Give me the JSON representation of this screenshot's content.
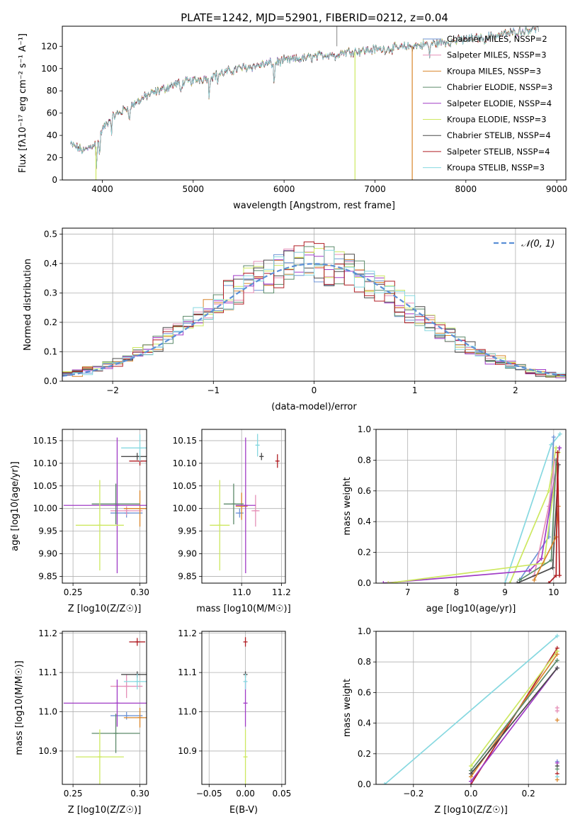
{
  "page_title": "PLATE=1242, MJD=52901, FIBERID=0212, z=0.04",
  "colors": {
    "chabrier_miles": "#6f95d6",
    "salpeter_miles": "#e58fb7",
    "kroupa_miles": "#d9862b",
    "chabrier_elodie": "#5c8a6a",
    "salpeter_elodie": "#a03bc6",
    "kroupa_elodie": "#cde860",
    "chabrier_stelib": "#4a4a4a",
    "salpeter_stelib": "#b01e24",
    "kroupa_stelib": "#86d8e0",
    "data_gray": "#9a9a9a",
    "normal": "#5b8fd6",
    "grid": "#b0b0b0"
  },
  "chart_data": [
    {
      "type": "line",
      "title": "PLATE=1242, MJD=52901, FIBERID=0212, z=0.04",
      "xlabel": "wavelength [Angstrom, rest frame]",
      "ylabel": "Flux [fλ10⁻¹⁷ erg cm⁻² s⁻¹ A⁻¹]",
      "xlim": [
        3560,
        9100
      ],
      "ylim": [
        0,
        138
      ],
      "xticks": [
        4000,
        5000,
        6000,
        7000,
        8000,
        9000
      ],
      "yticks": [
        0,
        20,
        40,
        60,
        80,
        100,
        120
      ],
      "grid": false,
      "legend_position": "top-right",
      "series": [
        {
          "name": "Chabrier MILES, NSSP=2",
          "color_key": "chabrier_miles"
        },
        {
          "name": "Salpeter MILES, NSSP=3",
          "color_key": "salpeter_miles"
        },
        {
          "name": "Kroupa MILES, NSSP=3",
          "color_key": "kroupa_miles"
        },
        {
          "name": "Chabrier ELODIE, NSSP=3",
          "color_key": "chabrier_elodie"
        },
        {
          "name": "Salpeter ELODIE, NSSP=4",
          "color_key": "salpeter_elodie"
        },
        {
          "name": "Kroupa ELODIE, NSSP=3",
          "color_key": "kroupa_elodie"
        },
        {
          "name": "Chabrier STELIB, NSSP=4",
          "color_key": "chabrier_stelib"
        },
        {
          "name": "Salpeter STELIB, NSSP=4",
          "color_key": "salpeter_stelib"
        },
        {
          "name": "Kroupa STELIB, NSSP=3",
          "color_key": "kroupa_stelib"
        }
      ],
      "continuum": {
        "x": [
          3650,
          3800,
          3950,
          4000,
          4100,
          4300,
          4500,
          4800,
          5000,
          5200,
          5500,
          5800,
          6000,
          6300,
          6500,
          6700,
          7000,
          7200,
          7500,
          7800,
          8000,
          8200,
          8500,
          8800,
          9000
        ],
        "y": [
          32,
          26,
          35,
          45,
          56,
          66,
          76,
          86,
          89,
          93,
          100,
          104,
          107,
          110,
          113,
          115,
          117,
          118,
          121,
          124,
          126,
          128,
          132,
          137,
          140
        ]
      },
      "spikes": [
        {
          "x": 3930,
          "y_from": 30,
          "y_to": 0,
          "color_key": "kroupa_elodie"
        },
        {
          "x": 6780,
          "y_from": 115,
          "y_to": 0,
          "color_key": "kroupa_elodie"
        },
        {
          "x": 7410,
          "y_from": 120,
          "y_to": 0,
          "color_key": "kroupa_miles"
        },
        {
          "x": 6580,
          "y_from": 120,
          "y_to": 140,
          "color_key": "data_gray"
        }
      ]
    },
    {
      "type": "line",
      "xlabel": "(data-model)/error",
      "ylabel": "Normed distribution",
      "xlim": [
        -2.5,
        2.5
      ],
      "ylim": [
        0,
        0.52
      ],
      "xticks": [
        -2,
        -1,
        0,
        1,
        2
      ],
      "yticks": [
        0.0,
        0.1,
        0.2,
        0.3,
        0.4,
        0.5
      ],
      "grid": true,
      "legend_position": "top-right",
      "legend": [
        "𝒩(0, 1)"
      ],
      "histogram_bins": {
        "start": -2.5,
        "width": 0.1,
        "count": 50
      },
      "histogram_series_count": 9
    },
    {
      "type": "scatter",
      "xlabel": "Z [log10(Z/Z☉)]",
      "ylabel": "age  [log10(age/yr)]",
      "xlim": [
        0.242,
        0.305
      ],
      "ylim": [
        9.835,
        10.175
      ],
      "xticks": [
        0.25,
        0.3
      ],
      "yticks": [
        9.85,
        9.9,
        9.95,
        10.0,
        10.05,
        10.1,
        10.15
      ],
      "grid": true,
      "points": [
        {
          "x": 0.29,
          "xerr": 0.012,
          "y": 9.99,
          "yerr": 0.01,
          "color_key": "chabrier_miles"
        },
        {
          "x": 0.29,
          "xerr": 0.012,
          "y": 9.995,
          "yerr": 0.01,
          "color_key": "salpeter_miles"
        },
        {
          "x": 0.3,
          "xerr": 0.012,
          "y": 10.0,
          "yerr": 0.04,
          "color_key": "kroupa_miles"
        },
        {
          "x": 0.282,
          "xerr": 0.018,
          "y": 10.01,
          "yerr": 0.045,
          "color_key": "chabrier_elodie"
        },
        {
          "x": 0.283,
          "xerr": 0.04,
          "y": 10.007,
          "yerr": 0.15,
          "color_key": "salpeter_elodie"
        },
        {
          "x": 0.27,
          "xerr": 0.018,
          "y": 9.963,
          "yerr": 0.1,
          "color_key": "kroupa_elodie"
        },
        {
          "x": 0.298,
          "xerr": 0.012,
          "y": 10.115,
          "yerr": 0.008,
          "color_key": "chabrier_stelib"
        },
        {
          "x": 0.3,
          "xerr": 0.008,
          "y": 10.105,
          "yerr": 0.01,
          "color_key": "salpeter_stelib"
        },
        {
          "x": 0.3,
          "xerr": 0.014,
          "y": 10.134,
          "yerr": 0.03,
          "color_key": "kroupa_stelib"
        }
      ]
    },
    {
      "type": "scatter",
      "xlabel": "mass [log10(M/M☉)]",
      "ylabel": "",
      "xlim": [
        10.8,
        11.22
      ],
      "ylim": [
        9.835,
        10.175
      ],
      "xticks": [
        11.0,
        11.2
      ],
      "yticks": [
        9.85,
        9.9,
        9.95,
        10.0,
        10.05,
        10.1,
        10.15
      ],
      "grid": true,
      "points": [
        {
          "x": 10.99,
          "xerr": 0.02,
          "y": 9.99,
          "yerr": 0.01,
          "color_key": "chabrier_miles"
        },
        {
          "x": 11.07,
          "xerr": 0.02,
          "y": 9.995,
          "yerr": 0.035,
          "color_key": "salpeter_miles"
        },
        {
          "x": 11.0,
          "xerr": 0.03,
          "y": 10.005,
          "yerr": 0.03,
          "color_key": "kroupa_miles"
        },
        {
          "x": 10.96,
          "xerr": 0.05,
          "y": 10.01,
          "yerr": 0.045,
          "color_key": "chabrier_elodie"
        },
        {
          "x": 11.02,
          "xerr": 0.05,
          "y": 10.007,
          "yerr": 0.15,
          "color_key": "salpeter_elodie"
        },
        {
          "x": 10.89,
          "xerr": 0.05,
          "y": 9.963,
          "yerr": 0.1,
          "color_key": "kroupa_elodie"
        },
        {
          "x": 11.1,
          "xerr": 0.01,
          "y": 10.115,
          "yerr": 0.008,
          "color_key": "chabrier_stelib"
        },
        {
          "x": 11.18,
          "xerr": 0.005,
          "y": 10.105,
          "yerr": 0.015,
          "color_key": "salpeter_stelib"
        },
        {
          "x": 11.08,
          "xerr": 0.01,
          "y": 10.14,
          "yerr": 0.025,
          "color_key": "kroupa_stelib"
        }
      ]
    },
    {
      "type": "line",
      "xlabel": "age  [log10(age/yr)]",
      "ylabel": "mass weight",
      "xlim": [
        6.35,
        10.25
      ],
      "ylim": [
        0,
        1.0
      ],
      "xticks": [
        7,
        8,
        9,
        10
      ],
      "yticks": [
        0.0,
        0.2,
        0.4,
        0.6,
        0.8,
        1.0
      ],
      "grid": true,
      "series": [
        {
          "color_key": "kroupa_stelib",
          "x": [
            9.0,
            9.95,
            10.13
          ],
          "y": [
            0.0,
            0.9,
            0.97
          ]
        },
        {
          "color_key": "chabrier_miles",
          "x": [
            9.3,
            9.9,
            10.0
          ],
          "y": [
            0.02,
            0.3,
            0.95
          ]
        },
        {
          "color_key": "kroupa_elodie",
          "x": [
            9.1,
            9.9,
            10.05
          ],
          "y": [
            0.0,
            0.6,
            0.88
          ]
        },
        {
          "color_key": "salpeter_miles",
          "x": [
            9.6,
            9.9,
            10.02
          ],
          "y": [
            0.05,
            0.5,
            0.8
          ]
        },
        {
          "color_key": "salpeter_elodie",
          "x": [
            6.5,
            9.5,
            9.75,
            10.12
          ],
          "y": [
            0.0,
            0.08,
            0.16,
            0.88
          ]
        },
        {
          "color_key": "kroupa_elodie",
          "x": [
            6.6,
            9.8,
            10.1
          ],
          "y": [
            0.0,
            0.13,
            0.85
          ]
        },
        {
          "color_key": "chabrier_elodie",
          "x": [
            9.3,
            9.95,
            10.05
          ],
          "y": [
            0.02,
            0.15,
            0.8
          ]
        },
        {
          "color_key": "chabrier_stelib",
          "x": [
            9.25,
            9.98,
            10.1
          ],
          "y": [
            0.0,
            0.1,
            0.77
          ]
        },
        {
          "color_key": "kroupa_miles",
          "x": [
            9.6,
            10.05,
            10.1
          ],
          "y": [
            0.02,
            0.3,
            0.5
          ]
        },
        {
          "color_key": "salpeter_stelib",
          "x": [
            9.9,
            10.05,
            10.08,
            10.12
          ],
          "y": [
            0.0,
            0.05,
            0.85,
            0.05
          ]
        }
      ]
    },
    {
      "type": "scatter",
      "xlabel": "Z [log10(Z/Z☉)]",
      "ylabel": "mass [log10(M/M☉)]",
      "xlim": [
        0.242,
        0.305
      ],
      "ylim": [
        10.815,
        11.205
      ],
      "xticks": [
        0.25,
        0.3
      ],
      "yticks": [
        10.9,
        11.0,
        11.1,
        11.2
      ],
      "grid": true,
      "points": [
        {
          "x": 0.29,
          "xerr": 0.012,
          "y": 10.99,
          "yerr": 0.01,
          "color_key": "chabrier_miles"
        },
        {
          "x": 0.29,
          "xerr": 0.012,
          "y": 11.065,
          "yerr": 0.03,
          "color_key": "salpeter_miles"
        },
        {
          "x": 0.3,
          "xerr": 0.012,
          "y": 10.985,
          "yerr": 0.025,
          "color_key": "kroupa_miles"
        },
        {
          "x": 0.282,
          "xerr": 0.018,
          "y": 10.945,
          "yerr": 0.05,
          "color_key": "chabrier_elodie"
        },
        {
          "x": 0.283,
          "xerr": 0.04,
          "y": 11.022,
          "yerr": 0.06,
          "color_key": "salpeter_elodie"
        },
        {
          "x": 0.27,
          "xerr": 0.018,
          "y": 10.885,
          "yerr": 0.07,
          "color_key": "kroupa_elodie"
        },
        {
          "x": 0.298,
          "xerr": 0.012,
          "y": 11.095,
          "yerr": 0.008,
          "color_key": "chabrier_stelib"
        },
        {
          "x": 0.298,
          "xerr": 0.006,
          "y": 11.178,
          "yerr": 0.01,
          "color_key": "salpeter_stelib"
        },
        {
          "x": 0.298,
          "xerr": 0.01,
          "y": 11.077,
          "yerr": 0.02,
          "color_key": "kroupa_stelib"
        }
      ]
    },
    {
      "type": "scatter",
      "xlabel": "E(B-V)",
      "ylabel": "",
      "xlim": [
        -0.06,
        0.055
      ],
      "ylim": [
        10.815,
        11.205
      ],
      "xticks": [
        -0.05,
        0.0,
        0.05
      ],
      "yticks": [
        10.9,
        11.0,
        11.1,
        11.2
      ],
      "grid": true,
      "points": [
        {
          "x": 0.0,
          "xerr": 0.0,
          "y": 10.885,
          "yerr": 0.07,
          "color_key": "kroupa_elodie"
        },
        {
          "x": 0.0,
          "xerr": 0.0,
          "y": 11.022,
          "yerr": 0.06,
          "color_key": "salpeter_elodie"
        },
        {
          "x": 0.0,
          "xerr": 0.0,
          "y": 11.178,
          "yerr": 0.012,
          "color_key": "salpeter_stelib"
        },
        {
          "x": 0.0,
          "xerr": 0.0,
          "y": 11.095,
          "yerr": 0.008,
          "color_key": "chabrier_stelib"
        },
        {
          "x": 0.0,
          "xerr": 0.0,
          "y": 11.077,
          "yerr": 0.02,
          "color_key": "kroupa_stelib"
        }
      ]
    },
    {
      "type": "line",
      "xlabel": "Z [log10(Z/Z☉)]",
      "ylabel": "mass weight",
      "xlim": [
        -0.33,
        0.33
      ],
      "ylim": [
        0,
        1.0
      ],
      "xticks": [
        -0.2,
        0.0,
        0.2
      ],
      "yticks": [
        0.0,
        0.2,
        0.4,
        0.6,
        0.8,
        1.0
      ],
      "grid": true,
      "series": [
        {
          "color_key": "kroupa_stelib",
          "x": [
            -0.3,
            0.3
          ],
          "y": [
            0.0,
            0.97
          ]
        },
        {
          "color_key": "salpeter_stelib",
          "x": [
            0.0,
            0.3
          ],
          "y": [
            0.0,
            0.89
          ]
        },
        {
          "color_key": "kroupa_elodie",
          "x": [
            0.0,
            0.3
          ],
          "y": [
            0.12,
            0.87
          ]
        },
        {
          "color_key": "kroupa_miles",
          "x": [
            0.0,
            0.3
          ],
          "y": [
            0.05,
            0.85
          ]
        },
        {
          "color_key": "chabrier_elodie",
          "x": [
            0.0,
            0.3
          ],
          "y": [
            0.09,
            0.81
          ]
        },
        {
          "color_key": "salpeter_elodie",
          "x": [
            0.0,
            0.3
          ],
          "y": [
            0.02,
            0.76
          ]
        },
        {
          "color_key": "chabrier_stelib",
          "x": [
            0.0,
            0.3
          ],
          "y": [
            0.07,
            0.76
          ]
        }
      ],
      "markers": [
        {
          "color_key": "salpeter_miles",
          "x": 0.3,
          "y": 0.5
        },
        {
          "color_key": "kroupa_miles",
          "x": 0.3,
          "y": 0.42
        },
        {
          "color_key": "salpeter_miles",
          "x": 0.3,
          "y": 0.48
        },
        {
          "color_key": "chabrier_miles",
          "x": 0.3,
          "y": 0.15
        },
        {
          "color_key": "salpeter_elodie",
          "x": 0.3,
          "y": 0.14
        },
        {
          "color_key": "chabrier_stelib",
          "x": 0.3,
          "y": 0.12
        },
        {
          "color_key": "chabrier_elodie",
          "x": 0.3,
          "y": 0.1
        },
        {
          "color_key": "salpeter_stelib",
          "x": 0.3,
          "y": 0.07
        },
        {
          "color_key": "kroupa_stelib",
          "x": 0.3,
          "y": 0.05
        },
        {
          "color_key": "kroupa_miles",
          "x": 0.3,
          "y": 0.03
        }
      ]
    }
  ]
}
